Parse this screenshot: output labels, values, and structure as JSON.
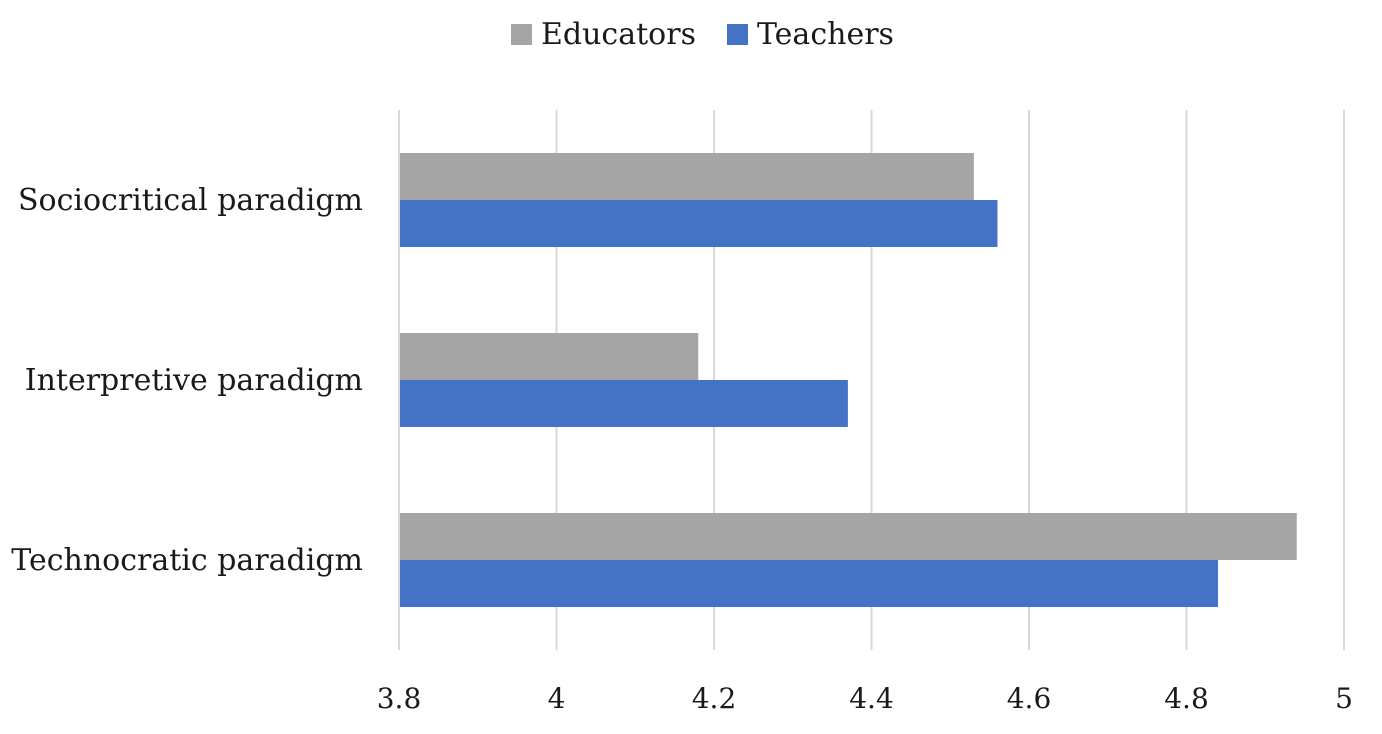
{
  "chart_data": {
    "type": "bar",
    "orientation": "horizontal",
    "title": "",
    "xlabel": "",
    "ylabel": "",
    "categories": [
      "Sociocritical paradigm",
      "Interpretive paradigm",
      "Technocratic paradigm"
    ],
    "series": [
      {
        "name": "Educators",
        "color": "#a5a5a5",
        "values": [
          4.53,
          4.18,
          4.94
        ]
      },
      {
        "name": "Teachers",
        "color": "#4472c4",
        "values": [
          4.56,
          4.37,
          4.84
        ]
      }
    ],
    "xlim": [
      3.8,
      5.0
    ],
    "xticks": [
      3.8,
      4.0,
      4.2,
      4.4,
      4.6,
      4.8,
      5.0
    ],
    "xtick_labels": [
      "3.8",
      "4",
      "4.2",
      "4.4",
      "4.6",
      "4.8",
      "5"
    ],
    "grid": "vertical",
    "legend_position": "top-center"
  }
}
